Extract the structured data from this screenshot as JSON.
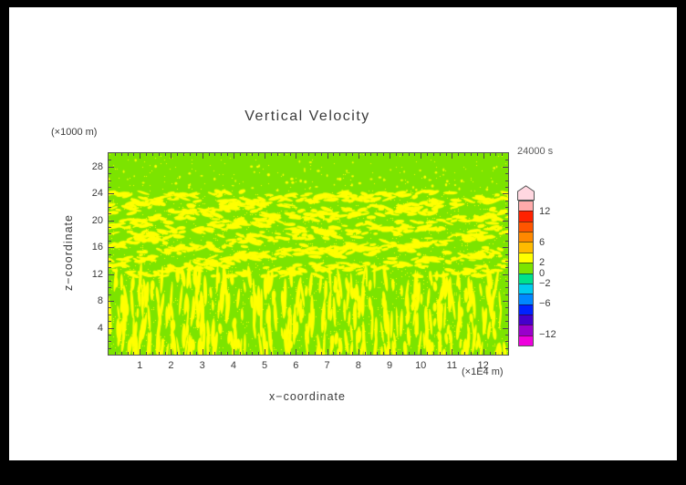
{
  "frame": {
    "border_color": "#000000",
    "canvas_color": "#ffffff"
  },
  "chart_data": {
    "type": "heatmap",
    "title": "Vertical Velocity",
    "time_label": "24000 s",
    "xlabel": "x−coordinate",
    "x_unit": "(×1E4 m)",
    "ylabel": "z−coordinate",
    "y_unit": "(×1000 m)",
    "xlim": [
      0,
      12.8
    ],
    "ylim": [
      0,
      30
    ],
    "x_ticks": [
      1,
      2,
      3,
      4,
      5,
      6,
      7,
      8,
      9,
      10,
      11,
      12
    ],
    "y_ticks": [
      4,
      8,
      12,
      16,
      20,
      24,
      28
    ],
    "x_minor_step": 0.2,
    "y_minor_step": 1,
    "grid": false,
    "legend_position": "right-colorbar",
    "field_description": "Vertical velocity field at t=24000 s; values mostly in 0–2 band (green) with 2–4 band (yellow) speckles: vertical streak cells below z≈12 (×1000 m), wavy horizontal gravity-wave bands for z≈12–24, sparse small specks above z≈24",
    "background_value_color": "#7ce400",
    "speckle_value_color": "#ffff00",
    "colorbar": {
      "min": -14,
      "max": 14,
      "segment_step": 2,
      "labels": [
        "12",
        "6",
        "2",
        "0",
        "−2",
        "−6",
        "−12"
      ],
      "label_values": [
        12,
        6,
        2,
        0,
        -2,
        -6,
        -12
      ],
      "overflow_arrow_color": "#ffd7e0",
      "segment_colors_top_to_bottom": [
        "#ffaaaa",
        "#ff2200",
        "#ff5500",
        "#ff8800",
        "#ffbb00",
        "#ffff00",
        "#7ce400",
        "#00e28c",
        "#00ccee",
        "#0088ff",
        "#0022ff",
        "#4400cc",
        "#9900cc",
        "#ee00dd"
      ]
    },
    "texture": {
      "seed": 7,
      "fine_dot_prob": 0.09,
      "lower_streaks": 380,
      "mid_dashes": 2000,
      "upper_dots": 170
    }
  }
}
